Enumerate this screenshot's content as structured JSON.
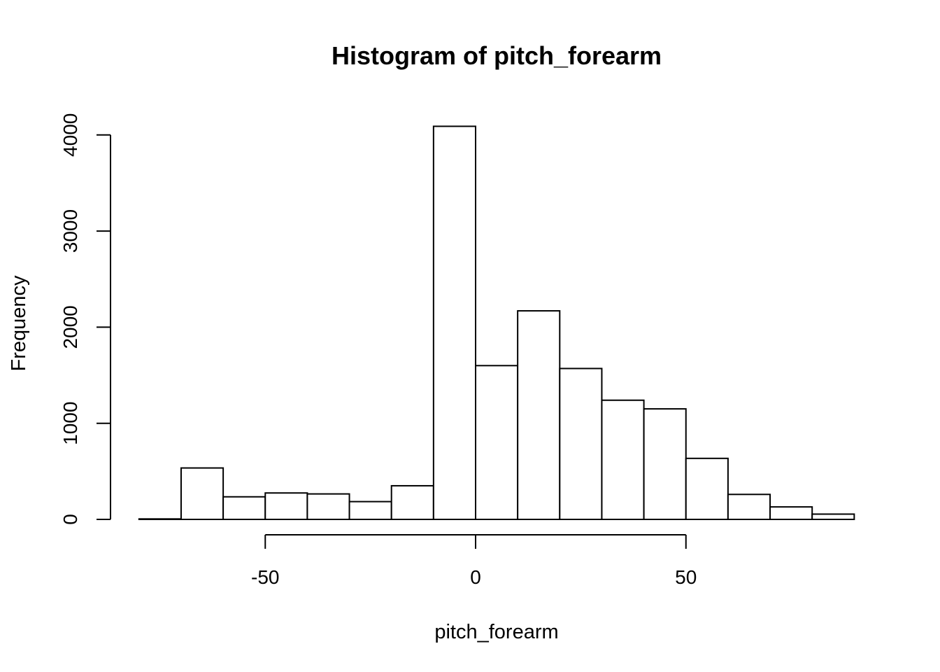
{
  "chart_data": {
    "type": "bar",
    "title": "Histogram of pitch_forearm",
    "xlabel": "pitch_forearm",
    "ylabel": "Frequency",
    "bin_edges": [
      -80,
      -70,
      -60,
      -50,
      -40,
      -30,
      -20,
      -10,
      0,
      10,
      20,
      30,
      40,
      50,
      60,
      70,
      80,
      90
    ],
    "values": [
      5,
      535,
      235,
      275,
      265,
      185,
      350,
      4090,
      1600,
      2170,
      1570,
      1240,
      1150,
      635,
      260,
      130,
      55
    ],
    "xlim": [
      -80,
      90
    ],
    "ylim": [
      0,
      4100
    ],
    "x_ticks": [
      -50,
      0,
      50
    ],
    "x_tick_labels": [
      "-50",
      "0",
      "50"
    ],
    "y_ticks": [
      0,
      1000,
      2000,
      3000,
      4000
    ],
    "y_tick_labels": [
      "0",
      "1000",
      "2000",
      "3000",
      "4000"
    ],
    "grid": false
  }
}
